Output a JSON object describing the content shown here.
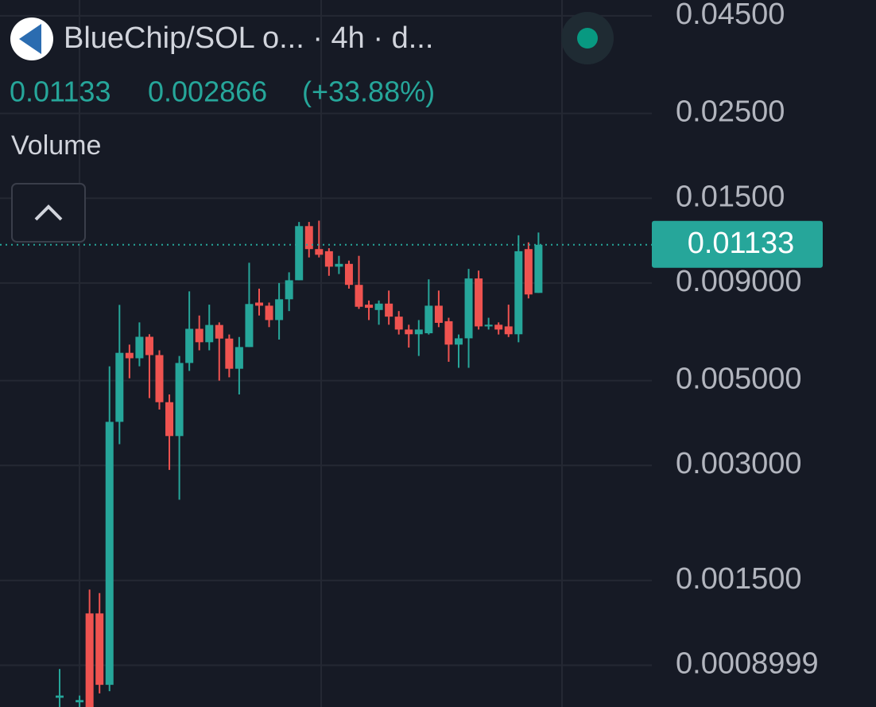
{
  "chart_data": {
    "type": "candlestick",
    "title": "BlueChip/SOL o... · 4h · d...",
    "last_price": 0.01133,
    "change": 0.002866,
    "change_percent_label": "(+33.88%)",
    "indicator_label": "Volume",
    "log_scale": true,
    "grid": true,
    "up_color": "#26a69a",
    "down_color": "#ef5350",
    "ylim": [
      0.0007,
      0.0495
    ],
    "yticks": [
      {
        "value": 0.045,
        "label": "0.04500"
      },
      {
        "value": 0.025,
        "label": "0.02500"
      },
      {
        "value": 0.015,
        "label": "0.01500"
      },
      {
        "value": 0.009,
        "label": "0.009000"
      },
      {
        "value": 0.005,
        "label": "0.005000"
      },
      {
        "value": 0.003,
        "label": "0.003000"
      },
      {
        "value": 0.0015,
        "label": "0.001500"
      },
      0.0008999
    ],
    "open": [
      0.00074,
      null,
      0.00072,
      0.00123,
      0.00123,
      0.0008,
      0.0039,
      0.00591,
      0.00572,
      0.00651,
      0.00583,
      0.00439,
      0.00358,
      0.00556,
      0.00683,
      0.0063,
      0.00699,
      0.00644,
      0.00537,
      0.00612,
      0.008,
      0.00785,
      0.0072,
      0.00816,
      0.00915,
      0.01268,
      0.01104,
      0.0109,
      0.00993,
      0.0101,
      0.0089,
      0.0079,
      0.00765,
      0.00795,
      0.00735,
      0.0068,
      0.00661,
      0.00665,
      0.00785,
      0.00715,
      0.00621,
      0.00645,
      0.00925,
      0.00693,
      0.007,
      0.00693,
      0.00661,
      0.01104,
      0.00848
    ],
    "high": [
      0.00088,
      null,
      0.00075,
      0.00142,
      0.00139,
      0.00545,
      0.00789,
      0.00621,
      0.0071,
      0.00661,
      0.006,
      0.0046,
      0.0058,
      0.00856,
      0.0074,
      0.0079,
      0.0071,
      0.0066,
      0.0065,
      0.01017,
      0.0087,
      0.008,
      0.009,
      0.0096,
      0.013,
      0.013,
      0.0131,
      0.0111,
      0.0106,
      0.0103,
      0.0106,
      0.0081,
      0.0081,
      0.0086,
      0.0076,
      0.007,
      0.0072,
      0.0092,
      0.0086,
      0.0073,
      0.0066,
      0.0098,
      0.0097,
      0.0073,
      0.0071,
      0.0079,
      0.012,
      0.0115,
      0.0122
    ],
    "low": [
      0.0007,
      null,
      0.0007,
      0.00068,
      0.00076,
      0.00077,
      0.00341,
      0.00507,
      0.00545,
      0.0045,
      0.0042,
      0.00292,
      0.00244,
      0.0053,
      0.006,
      0.006,
      0.005,
      0.0051,
      0.0046,
      0.00612,
      0.0074,
      0.0069,
      0.0064,
      0.0076,
      0.00915,
      0.0105,
      0.0105,
      0.0094,
      0.0095,
      0.0087,
      0.0077,
      0.0072,
      0.007,
      0.007,
      0.0066,
      0.0061,
      0.0058,
      0.0066,
      0.0069,
      0.0056,
      0.0054,
      0.0054,
      0.0068,
      0.0068,
      0.0066,
      0.0065,
      0.0063,
      0.0082,
      0.00848
    ],
    "close": [
      0.00075,
      null,
      0.00073,
      0.0007,
      0.0008,
      0.0039,
      0.00591,
      0.00572,
      0.00651,
      0.00583,
      0.00439,
      0.00358,
      0.00556,
      0.00683,
      0.0063,
      0.00699,
      0.00644,
      0.00537,
      0.00612,
      0.00793,
      0.00785,
      0.0072,
      0.00816,
      0.00915,
      0.01268,
      0.01104,
      0.01067,
      0.00993,
      0.0101,
      0.0089,
      0.0078,
      0.00775,
      0.00795,
      0.00735,
      0.0068,
      0.00661,
      0.0068,
      0.00785,
      0.00708,
      0.00621,
      0.00645,
      0.00925,
      0.00693,
      0.007,
      0.0068,
      0.00661,
      0.0109,
      0.0084,
      0.01133
    ]
  }
}
